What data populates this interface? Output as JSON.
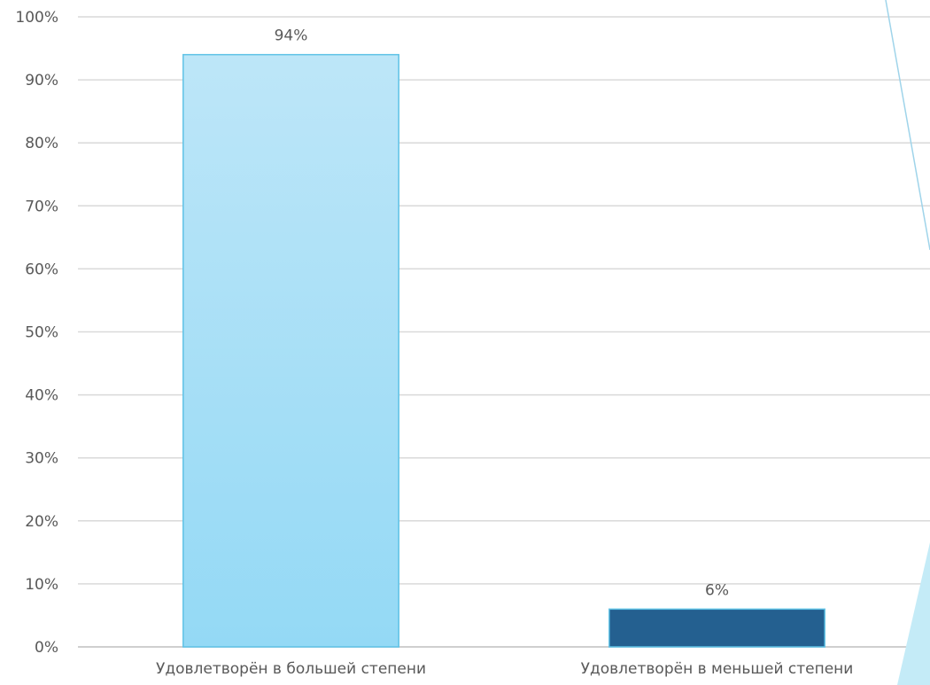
{
  "chart_data": {
    "type": "bar",
    "categories": [
      "Удовлетворён в большей степени",
      "Удовлетворён в меньшей степени"
    ],
    "values": [
      94,
      6
    ],
    "data_labels": [
      "94%",
      "6%"
    ],
    "bar_colors": [
      "#9fdcf5",
      "#246090"
    ],
    "ylim": [
      0,
      100
    ],
    "yticks": [
      0,
      10,
      20,
      30,
      40,
      50,
      60,
      70,
      80,
      90,
      100
    ],
    "ytick_labels": [
      "0%",
      "10%",
      "20%",
      "30%",
      "40%",
      "50%",
      "60%",
      "70%",
      "80%",
      "90%",
      "100%"
    ],
    "title": "",
    "xlabel": "",
    "ylabel": "",
    "grid": true,
    "legend": "none"
  }
}
